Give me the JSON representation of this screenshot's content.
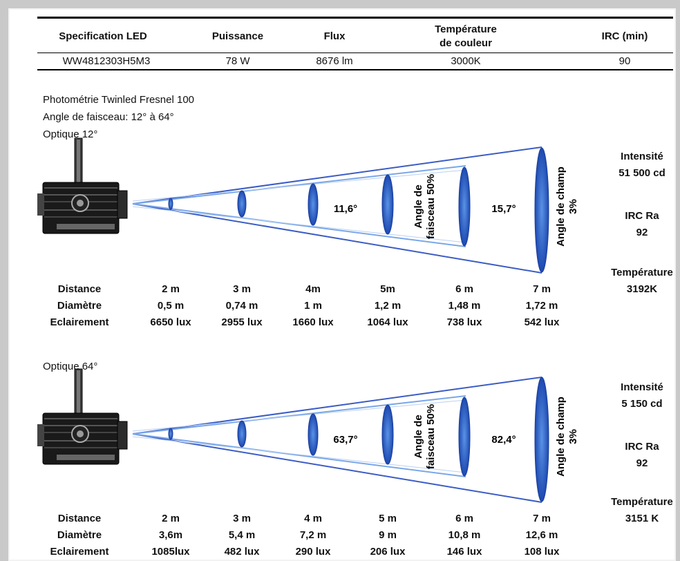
{
  "spec_table": {
    "headers": [
      "Specification LED",
      "Puissance",
      "Flux",
      "Température de couleur",
      "IRC (min)"
    ],
    "header_temp_line1": "Température",
    "header_temp_line2": "de couleur",
    "row": [
      "WW4812303H5M3",
      "78 W",
      "8676 lm",
      "3000K",
      "90"
    ]
  },
  "info": {
    "line1": "Photométrie Twinled Fresnel 100",
    "line2": "Angle de faisceau:  12° à 64°"
  },
  "blocks": [
    {
      "optic_label": "Optique 12°",
      "beam_angle": "11,6°",
      "field_angle": "15,7°",
      "beam_label_1": "Angle de",
      "beam_label_2": "faisceau 50%",
      "field_label_1": "Angle de champ",
      "field_label_2": "3%",
      "intensity_label": "Intensité",
      "intensity_value": "51 500 cd",
      "irc_label": "IRC Ra",
      "irc_value": "92",
      "temp_label": "Température",
      "temp_value": "3192K",
      "row_labels": [
        "Distance",
        "Diamètre",
        "Eclairement"
      ],
      "distance": [
        "2 m",
        "3 m",
        "4m",
        "5m",
        "6 m",
        "7 m"
      ],
      "diametre": [
        "0,5 m",
        "0,74 m",
        "1 m",
        "1,2 m",
        "1,48 m",
        "1,72 m"
      ],
      "eclairement": [
        "6650 lux",
        "2955 lux",
        "1660 lux",
        "1064 lux",
        "738 lux",
        "542 lux"
      ]
    },
    {
      "optic_label": "Optique 64°",
      "beam_angle": "63,7°",
      "field_angle": "82,4°",
      "beam_label_1": "Angle de",
      "beam_label_2": "faisceau 50%",
      "field_label_1": "Angle de champ",
      "field_label_2": "3%",
      "intensity_label": "Intensité",
      "intensity_value": "5 150 cd",
      "irc_label": "IRC Ra",
      "irc_value": "92",
      "temp_label": "Température",
      "temp_value": "3151 K",
      "row_labels": [
        "Distance",
        "Diamètre",
        "Eclairement"
      ],
      "distance": [
        "2 m",
        "3 m",
        "4 m",
        "5 m",
        "6 m",
        "7 m"
      ],
      "diametre": [
        "3,6m",
        "5,4 m",
        "7,2 m",
        "9 m",
        "10,8 m",
        "12,6 m"
      ],
      "eclairement": [
        "1085lux",
        "482 lux",
        "290 lux",
        "206 lux",
        "146 lux",
        "108 lux"
      ]
    }
  ],
  "colors": {
    "page_bg": "#c9c9c9",
    "sheet_bg": "#ffffff",
    "beam_outline": "#3b5cc4",
    "ellipse_fill": "#1f4fb8",
    "ellipse_light": "#4b86e0"
  }
}
